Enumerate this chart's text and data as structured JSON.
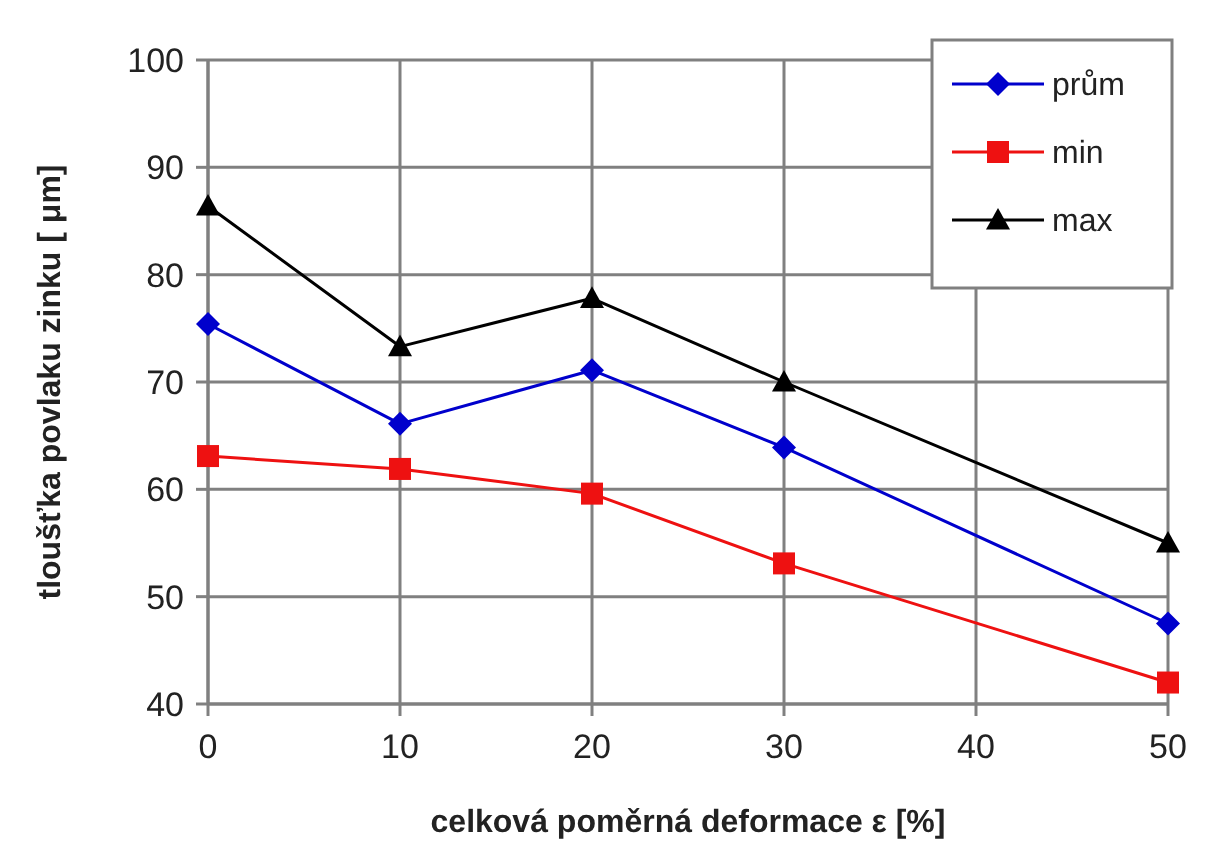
{
  "chart_data": {
    "type": "line",
    "xlabel": "celková poměrná deformace ε [%]",
    "ylabel": "tloušťka povlaku zinku [ μm]",
    "x": [
      0,
      10,
      20,
      30,
      50
    ],
    "xlim": [
      0,
      50
    ],
    "xticks": [
      0,
      10,
      20,
      30,
      40,
      50
    ],
    "ylim": [
      40,
      100
    ],
    "yticks": [
      40,
      50,
      60,
      70,
      80,
      90,
      100
    ],
    "grid": true,
    "legend": "top right",
    "line_style": "solid",
    "series": [
      {
        "name": "prům",
        "color": "#0000cc",
        "marker": "diamond",
        "values": [
          75.4,
          66.1,
          71.1,
          63.9,
          47.5
        ]
      },
      {
        "name": "min",
        "color": "#ee1111",
        "marker": "square",
        "values": [
          63.1,
          61.9,
          59.6,
          53.1,
          42
        ]
      },
      {
        "name": "max",
        "color": "#000000",
        "marker": "triangle",
        "values": [
          86.4,
          73.3,
          77.8,
          70,
          55
        ]
      }
    ]
  }
}
